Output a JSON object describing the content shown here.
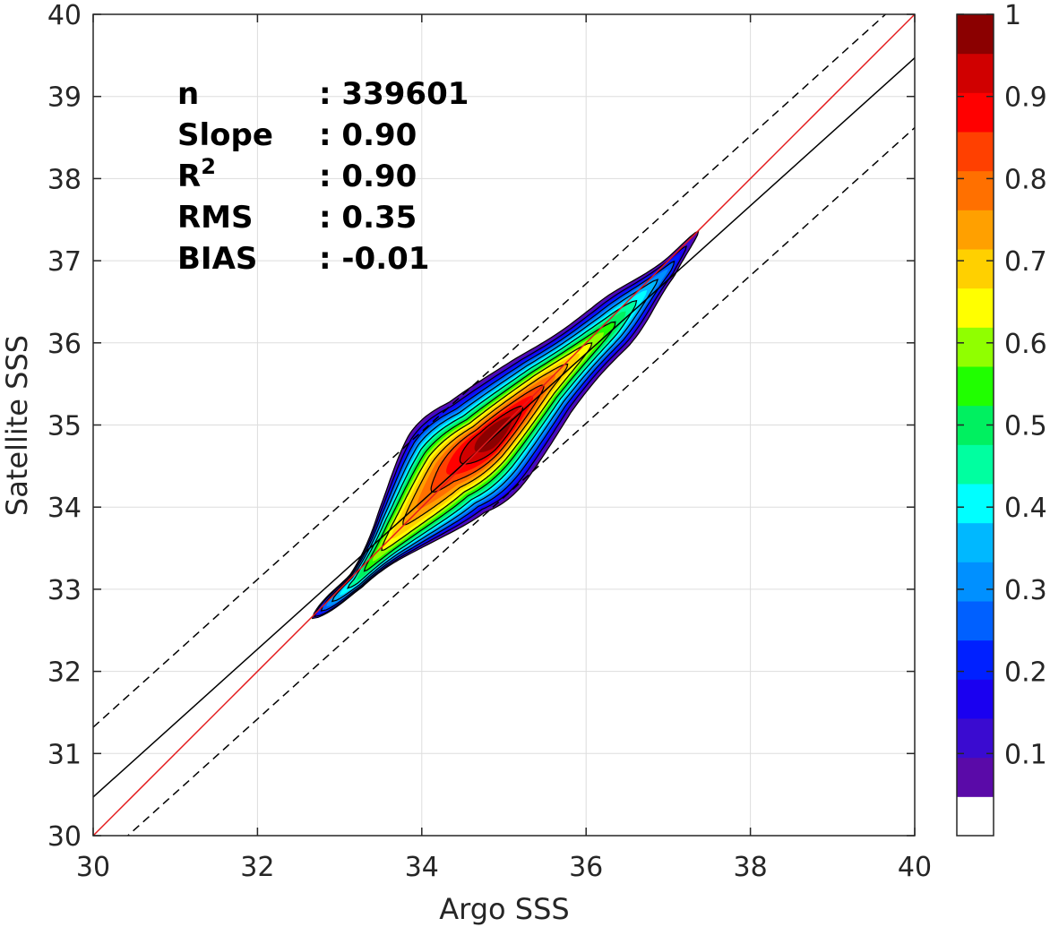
{
  "chart_data": {
    "type": "contour",
    "xlabel": "Argo SSS",
    "ylabel": "Satellite SSS",
    "xlim": [
      30,
      40
    ],
    "ylim": [
      30,
      40
    ],
    "xticks": [
      "30",
      "32",
      "34",
      "36",
      "38",
      "40"
    ],
    "yticks": [
      "30",
      "31",
      "32",
      "33",
      "34",
      "35",
      "36",
      "37",
      "38",
      "39",
      "40"
    ],
    "grid": true,
    "stats": [
      {
        "label": "n",
        "value": ": 339601"
      },
      {
        "label": "Slope",
        "value": ": 0.90"
      },
      {
        "label": "R",
        "sup": "2",
        "value": ": 0.90"
      },
      {
        "label": "RMS",
        "value": ": 0.35"
      },
      {
        "label": "BIAS",
        "value": ": -0.01"
      }
    ],
    "lines": {
      "one_to_one": {
        "color": "#e41a1c",
        "x": [
          30,
          40
        ],
        "y": [
          30,
          40
        ]
      },
      "regression": {
        "color": "#000000",
        "x": [
          30,
          40
        ],
        "y": [
          30.47,
          39.47
        ]
      },
      "upper_bound": {
        "color": "#000000",
        "dash": true,
        "x": [
          30,
          40
        ],
        "y": [
          31.32,
          40.32
        ]
      },
      "lower_bound": {
        "color": "#000000",
        "dash": true,
        "x": [
          30,
          40
        ],
        "y": [
          29.62,
          38.62
        ]
      }
    },
    "density": {
      "centerline": [
        {
          "x": 32.5,
          "y": 32.5
        },
        {
          "x": 33.2,
          "y": 33.1
        },
        {
          "x": 33.7,
          "y": 33.7
        },
        {
          "x": 34.3,
          "y": 34.4
        },
        {
          "x": 34.8,
          "y": 34.8
        },
        {
          "x": 35.5,
          "y": 35.5
        },
        {
          "x": 36.3,
          "y": 36.2
        },
        {
          "x": 37.0,
          "y": 36.9
        },
        {
          "x": 37.4,
          "y": 37.4
        }
      ],
      "peak": {
        "x": 35.4,
        "y": 35.35,
        "value": 1.0
      },
      "secondary_peak": {
        "x": 34.75,
        "y": 34.7,
        "value": 0.95
      }
    },
    "colorbar": {
      "ticks": [
        "0.1",
        "0.2",
        "0.3",
        "0.4",
        "0.5",
        "0.6",
        "0.7",
        "0.8",
        "0.9",
        "1"
      ],
      "range": [
        0,
        1
      ],
      "colors": [
        "#ffffff",
        "#5a0aa8",
        "#3a0bd0",
        "#1a00f0",
        "#0020ff",
        "#0060ff",
        "#0090ff",
        "#00b8ff",
        "#00ffff",
        "#00ffa0",
        "#00f060",
        "#20ff00",
        "#90ff00",
        "#ffff00",
        "#ffd000",
        "#ffa000",
        "#ff7000",
        "#ff4000",
        "#ff0000",
        "#d00000",
        "#8b0000"
      ]
    }
  }
}
